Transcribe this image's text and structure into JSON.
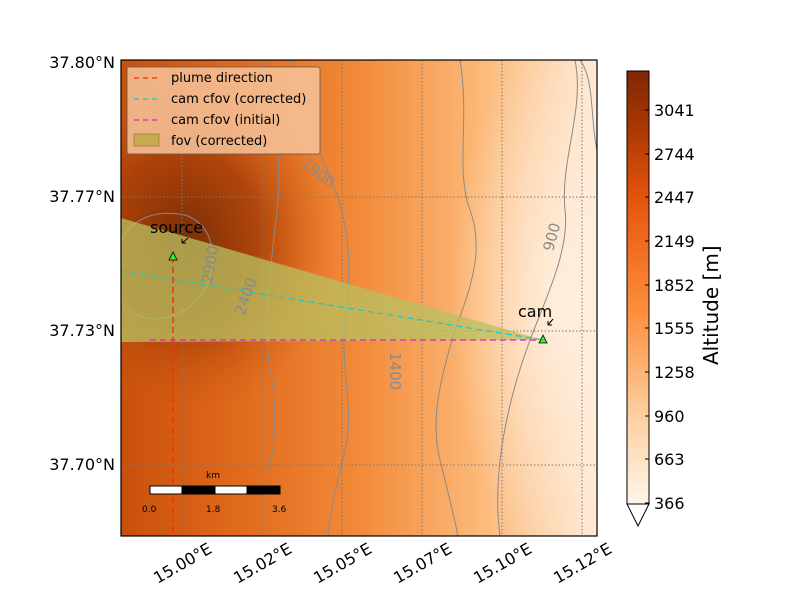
{
  "map": {
    "lat_labels": [
      "37.80°N",
      "37.77°N",
      "37.73°N",
      "37.70°N"
    ],
    "lon_labels": [
      "15.00°E",
      "15.02°E",
      "15.05°E",
      "15.07°E",
      "15.10°E",
      "15.12°E"
    ],
    "contour_labels": [
      "1900",
      "2900",
      "2400",
      "1400",
      "900"
    ],
    "annotations": {
      "source": "source",
      "cam": "cam"
    },
    "legend": {
      "plume": "plume direction",
      "cfov_corrected": "cam cfov (corrected)",
      "cfov_initial": "cam cfov (initial)",
      "fov_corrected": "fov (corrected)"
    },
    "scalebar": {
      "unit": "km",
      "ticks": [
        "0.0",
        "1.8",
        "3.6"
      ]
    },
    "colors": {
      "plume": "#ff2a00",
      "cfov_corrected": "#1fc5c5",
      "cfov_initial": "#e020c0",
      "fov_fill": "#b8c060",
      "marker": "#33ee33"
    }
  },
  "colorbar": {
    "label": "Altitude [m]",
    "ticks": [
      "3041",
      "2744",
      "2447",
      "2149",
      "1852",
      "1555",
      "1258",
      "960",
      "663",
      "366"
    ]
  }
}
